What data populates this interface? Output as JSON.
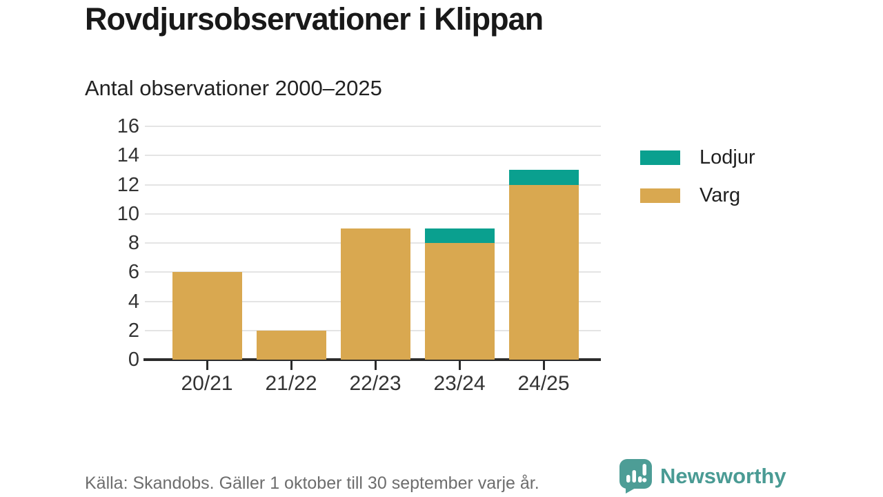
{
  "header": {
    "title": "Rovdjursobservationer i Klippan",
    "subtitle": "Antal observationer 2000–2025"
  },
  "chart_data": {
    "type": "bar",
    "stacked": true,
    "categories": [
      "20/21",
      "21/22",
      "22/23",
      "23/24",
      "24/25"
    ],
    "series": [
      {
        "name": "Varg",
        "color": "#d9a850",
        "values": [
          6,
          2,
          9,
          8,
          12
        ]
      },
      {
        "name": "Lodjur",
        "color": "#0aa08f",
        "values": [
          0,
          0,
          0,
          1,
          1
        ]
      }
    ],
    "totals": [
      6,
      2,
      9,
      9,
      13
    ],
    "title": "Rovdjursobservationer i Klippan",
    "subtitle": "Antal observationer 2000–2025",
    "xlabel": "",
    "ylabel": "",
    "ylim": [
      0,
      16
    ],
    "yticks": [
      0,
      2,
      4,
      6,
      8,
      10,
      12,
      14,
      16
    ],
    "grid": true,
    "legend_position": "right",
    "legend": [
      {
        "label": "Lodjur",
        "color": "#0aa08f"
      },
      {
        "label": "Varg",
        "color": "#d9a850"
      }
    ]
  },
  "footer": {
    "source": "Källa: Skandobs. Gäller 1 oktober till 30 september varje år.",
    "brand": "Newsworthy"
  },
  "colors": {
    "lodjur": "#0aa08f",
    "varg": "#d9a850",
    "brand_teal": "#4d9d96",
    "gridline": "#e4e4e4",
    "axis": "#2b2b2b",
    "title_text": "#191919",
    "axis_text": "#333333",
    "source_text": "#6d6d6d"
  }
}
